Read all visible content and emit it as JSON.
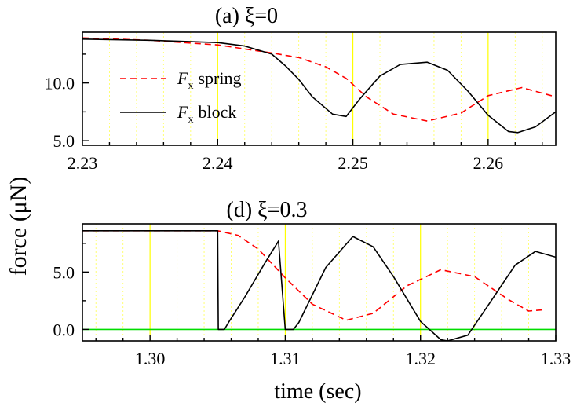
{
  "figure": {
    "shared_ylabel": "force (μN)",
    "shared_xlabel": "time (sec)"
  },
  "chart_data": [
    {
      "type": "line",
      "title": "(a) ξ=0",
      "xlabel": "",
      "ylabel": "force (μN)",
      "xlim": [
        2.23,
        2.265
      ],
      "ylim": [
        4.6,
        14.4
      ],
      "xticks": [
        2.23,
        2.24,
        2.25,
        2.26
      ],
      "xtick_labels": [
        "2.23",
        "2.24",
        "2.25",
        "2.26"
      ],
      "yticks": [
        5.0,
        10.0
      ],
      "ytick_labels": [
        "5.0",
        "10.0"
      ],
      "grid": "vertical dotted",
      "legend_position": "center-left",
      "colors": {
        "spring": "#ff0000",
        "block": "#000000",
        "major_grid": "#ffff00",
        "minor_grid": "#ffff66"
      },
      "series": [
        {
          "name": "F_x spring",
          "legend_main": "F",
          "legend_sub": "x",
          "legend_rest": "spring",
          "style": "dashed",
          "x": [
            2.23,
            2.235,
            2.24,
            2.242,
            2.244,
            2.246,
            2.248,
            2.2495,
            2.251,
            2.253,
            2.2555,
            2.258,
            2.26,
            2.2625,
            2.265
          ],
          "y": [
            13.9,
            13.7,
            13.3,
            12.95,
            12.6,
            12.2,
            11.4,
            10.4,
            8.8,
            7.3,
            6.7,
            7.4,
            8.9,
            9.6,
            8.8
          ]
        },
        {
          "name": "F_x block",
          "legend_main": "F",
          "legend_sub": "x",
          "legend_rest": "block",
          "style": "solid",
          "x": [
            2.23,
            2.235,
            2.24,
            2.242,
            2.244,
            2.245,
            2.246,
            2.247,
            2.2485,
            2.2495,
            2.2505,
            2.252,
            2.2535,
            2.2555,
            2.257,
            2.2585,
            2.26,
            2.2615,
            2.2622,
            2.2635,
            2.265
          ],
          "y": [
            13.8,
            13.7,
            13.5,
            13.2,
            12.5,
            11.5,
            10.3,
            8.8,
            7.3,
            7.1,
            8.6,
            10.6,
            11.6,
            11.8,
            11.1,
            9.3,
            7.2,
            5.8,
            5.7,
            6.2,
            7.5
          ]
        }
      ]
    },
    {
      "type": "line",
      "title": "(d) ξ=0.3",
      "xlabel": "time (sec)",
      "ylabel": "force (μN)",
      "xlim": [
        1.295,
        1.33
      ],
      "ylim": [
        -1.0,
        9.2
      ],
      "xticks": [
        1.3,
        1.31,
        1.32,
        1.33
      ],
      "xtick_labels": [
        "1.30",
        "1.31",
        "1.32",
        "1.33"
      ],
      "yticks": [
        0.0,
        5.0
      ],
      "ytick_labels": [
        "0.0",
        "5.0"
      ],
      "grid": "vertical dotted",
      "colors": {
        "spring": "#ff0000",
        "block": "#000000",
        "zero_line": "#00dd00",
        "major_grid": "#ffff00",
        "minor_grid": "#ffff66"
      },
      "series": [
        {
          "name": "F_x spring",
          "style": "dashed",
          "x": [
            1.295,
            1.3,
            1.305,
            1.3065,
            1.308,
            1.31,
            1.312,
            1.3145,
            1.3165,
            1.319,
            1.3215,
            1.324,
            1.3265,
            1.328,
            1.329
          ],
          "y": [
            8.6,
            8.6,
            8.6,
            8.2,
            7.0,
            4.5,
            2.2,
            0.8,
            1.4,
            3.8,
            5.2,
            4.6,
            2.6,
            1.6,
            1.7
          ]
        },
        {
          "name": "F_x block",
          "style": "solid",
          "x": [
            1.295,
            1.3,
            1.305,
            1.30505,
            1.3055,
            1.3058,
            1.307,
            1.3085,
            1.3095,
            1.31,
            1.3102,
            1.3106,
            1.311,
            1.313,
            1.315,
            1.3165,
            1.318,
            1.32,
            1.3215,
            1.322,
            1.3235,
            1.325,
            1.327,
            1.3285,
            1.33
          ],
          "y": [
            8.6,
            8.6,
            8.6,
            0.0,
            0.0,
            0.6,
            2.8,
            5.8,
            7.7,
            0.0,
            0.0,
            0.0,
            0.6,
            5.4,
            8.1,
            7.2,
            4.6,
            0.7,
            -0.9,
            -1.0,
            -0.5,
            2.1,
            5.6,
            6.8,
            6.3
          ]
        },
        {
          "name": "zero line",
          "style": "solid",
          "x": [
            1.295,
            1.33
          ],
          "y": [
            0.0,
            0.0
          ]
        }
      ]
    }
  ]
}
